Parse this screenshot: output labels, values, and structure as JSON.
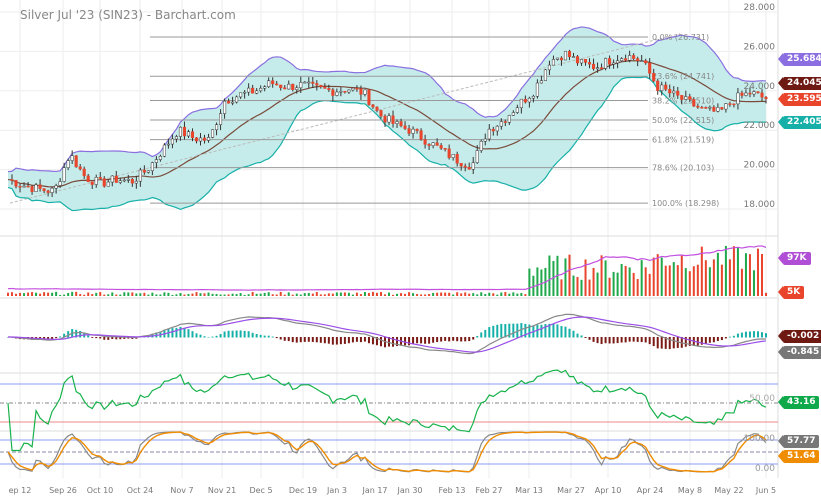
{
  "title": "Silver Jul '23 (SIN23) - Barchart.com",
  "chart_data": {
    "type": "candlestick",
    "title": "Silver Jul '23 (SIN23) - Barchart.com",
    "x_ticks": [
      "ep 12",
      "Sep 26",
      "Oct 10",
      "Oct 24",
      "Nov 7",
      "Nov 21",
      "Dec 5",
      "Dec 19",
      "Jan 3",
      "Jan 17",
      "Jan 30",
      "Feb 13",
      "Feb 27",
      "Mar 13",
      "Mar 27",
      "Apr 10",
      "Apr 24",
      "May 8",
      "May 22",
      "Jun 5"
    ],
    "price_ticks": [
      "28.000",
      "26.000",
      "24.000",
      "22.000",
      "20.000",
      "18.000"
    ],
    "price_ylim": [
      17.3,
      28.2
    ],
    "close_keypoints": [
      19.5,
      19.2,
      19.0,
      18.9,
      20.8,
      19.6,
      19.3,
      19.5,
      19.4,
      20.0,
      21.0,
      22.0,
      21.6,
      21.5,
      23.5,
      23.8,
      24.0,
      24.4,
      24.2,
      24.3,
      24.1,
      24.0,
      24.1,
      23.9,
      22.8,
      22.3,
      22.0,
      21.5,
      21.0,
      20.5,
      20.2,
      22.0,
      22.5,
      23.3,
      24.0,
      25.5,
      25.9,
      25.4,
      25.2,
      25.6,
      25.8,
      25.5,
      24.2,
      23.8,
      23.4,
      23.0,
      22.9,
      23.6,
      23.9,
      23.595
    ],
    "fibonacci": [
      {
        "label": "0.0% (26.731)",
        "level": 26.731
      },
      {
        "label": "23.6% (24.741)",
        "level": 24.741
      },
      {
        "label": "38.2% (23.510)",
        "level": 23.51
      },
      {
        "label": "50.0% (22.515)",
        "level": 22.515
      },
      {
        "label": "61.8% (21.519)",
        "level": 21.519
      },
      {
        "label": "78.6% (20.103)",
        "level": 20.103
      },
      {
        "label": "100.0% (18.298)",
        "level": 18.298
      }
    ],
    "indicators": {
      "bb_upper": "25.684",
      "sma": "24.045",
      "last": "23.595",
      "bb_lower": "22.405",
      "volume_avg": "97K",
      "volume_last": "5K",
      "macd_hist": "-0.002",
      "macd": "-0.845",
      "rsi": "43.16",
      "rsi_mid": "50.00",
      "stoch_k": "57.77",
      "stoch_d": "51.64",
      "stoch_ticks": [
        "100.00",
        "0.00"
      ]
    }
  },
  "colors": {
    "up": "#1ea84a",
    "down": "#e8452c",
    "band": "#c5ecea",
    "upper": "#8b6fe0",
    "lower": "#17b0a8",
    "sma": "#7a4a3a"
  }
}
